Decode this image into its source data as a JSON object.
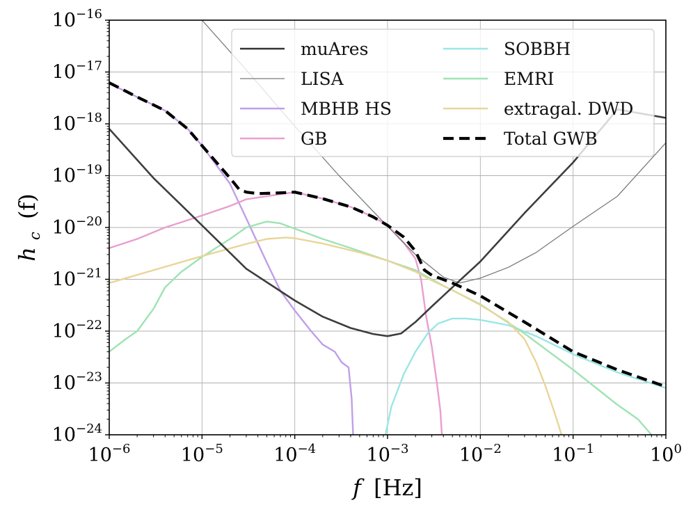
{
  "chart_data": {
    "type": "line",
    "xlabel": {
      "base": "f",
      "unit": "[Hz]"
    },
    "ylabel": {
      "base": "h",
      "sub": "c",
      "arg": "(f)"
    },
    "x_scale": "log",
    "y_scale": "log",
    "xlim": [
      1e-06,
      1
    ],
    "ylim": [
      1e-24,
      1e-16
    ],
    "grid": true,
    "legend_placement": "top-right, two columns",
    "x_ticks": [
      {
        "value": 1e-06,
        "base": "10",
        "exp": "−6"
      },
      {
        "value": 1e-05,
        "base": "10",
        "exp": "−5"
      },
      {
        "value": 0.0001,
        "base": "10",
        "exp": "−4"
      },
      {
        "value": 0.001,
        "base": "10",
        "exp": "−3"
      },
      {
        "value": 0.01,
        "base": "10",
        "exp": "−2"
      },
      {
        "value": 0.1,
        "base": "10",
        "exp": "−1"
      },
      {
        "value": 1,
        "base": "10",
        "exp": "0"
      }
    ],
    "y_ticks": [
      {
        "value": 1e-24,
        "base": "10",
        "exp": "−24"
      },
      {
        "value": 1e-23,
        "base": "10",
        "exp": "−23"
      },
      {
        "value": 1e-22,
        "base": "10",
        "exp": "−22"
      },
      {
        "value": 1e-21,
        "base": "10",
        "exp": "−21"
      },
      {
        "value": 1e-20,
        "base": "10",
        "exp": "−20"
      },
      {
        "value": 1e-19,
        "base": "10",
        "exp": "−19"
      },
      {
        "value": 1e-18,
        "base": "10",
        "exp": "−18"
      },
      {
        "value": 1e-17,
        "base": "10",
        "exp": "−17"
      },
      {
        "value": 1e-16,
        "base": "10",
        "exp": "−16"
      }
    ],
    "series": [
      {
        "name": "muAres",
        "color": "#333333",
        "style": "solid-thick",
        "x": [
          1e-06,
          3e-06,
          1e-05,
          3e-05,
          0.0001,
          0.0002,
          0.0004,
          0.0007,
          0.001,
          0.0014,
          0.002,
          0.003,
          0.006,
          0.01,
          0.03,
          0.1,
          0.3,
          1
        ],
        "y": [
          8e-19,
          9e-20,
          1.1e-20,
          1.6e-21,
          3.9e-22,
          1.9e-22,
          1.15e-22,
          8.8e-23,
          8e-23,
          9e-23,
          1.5e-22,
          3e-22,
          9.5e-22,
          2.2e-21,
          1.9e-20,
          1.8e-19,
          1.9e-18,
          1.3e-18
        ]
      },
      {
        "name": "LISA",
        "color": "#7a7a7a",
        "style": "solid-thin",
        "x": [
          1e-05,
          3e-05,
          0.0001,
          0.0003,
          0.001,
          0.002,
          0.004,
          0.006,
          0.01,
          0.02,
          0.04,
          0.1,
          0.3,
          1
        ],
        "y": [
          1e-16,
          1.1e-17,
          9e-19,
          1e-19,
          1.05e-20,
          3e-21,
          1.1e-21,
          8.5e-22,
          1.05e-21,
          1.7e-21,
          3.3e-21,
          1.05e-20,
          4e-20,
          4.3e-19
        ]
      },
      {
        "name": "MBHB HS",
        "color": "#c19ee8",
        "style": "solid",
        "x": [
          1e-06,
          2e-06,
          4e-06,
          7e-06,
          1e-05,
          2e-05,
          3e-05,
          5e-05,
          7e-05,
          0.0001,
          0.00015,
          0.0002,
          0.00027,
          0.00032,
          0.00038,
          0.00041,
          0.000425
        ],
        "y": [
          6e-18,
          3.3e-18,
          1.8e-18,
          8e-19,
          3.8e-19,
          7e-20,
          1.5e-20,
          2.1e-21,
          6e-22,
          2.5e-22,
          1e-22,
          5.5e-23,
          4e-23,
          2.5e-23,
          2e-23,
          5e-24,
          1e-24
        ]
      },
      {
        "name": "GB",
        "color": "#e89fcf",
        "style": "solid",
        "x": [
          1e-06,
          2e-06,
          4e-06,
          1e-05,
          2e-05,
          3e-05,
          5e-05,
          0.0001,
          0.0002,
          0.0004,
          0.0007,
          0.001,
          0.0015,
          0.002,
          0.0023,
          0.0026,
          0.003,
          0.0034,
          0.0037,
          0.00385
        ],
        "y": [
          4e-21,
          6e-21,
          1e-20,
          1.7e-20,
          2.6e-20,
          3.5e-20,
          4e-20,
          4.8e-20,
          3.6e-20,
          2.5e-20,
          1.6e-20,
          1.1e-20,
          5e-21,
          2.5e-21,
          1e-21,
          2e-22,
          5e-23,
          1e-23,
          3e-24,
          1e-24
        ]
      },
      {
        "name": "SOBBH",
        "color": "#9ae6e6",
        "style": "solid",
        "x": [
          0.00095,
          0.0011,
          0.0015,
          0.002,
          0.0027,
          0.0035,
          0.005,
          0.007,
          0.01,
          0.02,
          0.04,
          0.1,
          0.3,
          1
        ],
        "y": [
          1e-24,
          3.5e-24,
          1.5e-23,
          4e-23,
          9e-23,
          1.4e-22,
          1.75e-22,
          1.75e-22,
          1.65e-22,
          1.3e-22,
          8e-23,
          3.6e-23,
          1.6e-23,
          8e-24
        ]
      },
      {
        "name": "EMRI",
        "color": "#9ee3b3",
        "style": "solid",
        "x": [
          1e-06,
          1.5e-06,
          2e-06,
          3e-06,
          4e-06,
          6e-06,
          1e-05,
          2e-05,
          3e-05,
          5e-05,
          7e-05,
          0.0001,
          0.0002,
          0.0004,
          0.001,
          0.002,
          0.004,
          0.01,
          0.03,
          0.1,
          0.3,
          0.5,
          0.7
        ],
        "y": [
          4e-23,
          7e-23,
          1e-22,
          2.7e-22,
          7e-22,
          1.4e-21,
          2.7e-21,
          6e-21,
          1e-20,
          1.3e-20,
          1.2e-20,
          9.5e-21,
          6e-21,
          4e-21,
          2.3e-21,
          1.5e-21,
          7.5e-22,
          3.3e-22,
          9e-23,
          1.8e-23,
          3.8e-24,
          2e-24,
          1e-24
        ]
      },
      {
        "name": "extragal. DWD",
        "color": "#e8d598",
        "style": "solid",
        "x": [
          1e-06,
          3e-06,
          1e-05,
          3e-05,
          5e-05,
          8e-05,
          0.0001,
          0.0002,
          0.0005,
          0.001,
          0.002,
          0.003,
          0.005,
          0.01,
          0.02,
          0.03,
          0.04,
          0.05,
          0.06,
          0.07,
          0.075
        ],
        "y": [
          8.5e-22,
          1.5e-21,
          2.8e-21,
          4.8e-21,
          6e-21,
          6.4e-21,
          6.2e-21,
          4.9e-21,
          3.3e-21,
          2.3e-21,
          1.4e-21,
          9.5e-22,
          6.2e-22,
          3.2e-22,
          1.5e-22,
          7e-23,
          2.5e-23,
          9e-24,
          3.5e-24,
          1.5e-24,
          1e-24
        ]
      },
      {
        "name": "Total GWB",
        "color": "#000000",
        "style": "dashed-thick",
        "x": [
          1e-06,
          2e-06,
          4e-06,
          7e-06,
          1e-05,
          2e-05,
          2.5e-05,
          3e-05,
          4e-05,
          6e-05,
          0.0001,
          0.0002,
          0.0004,
          0.0007,
          0.001,
          0.0015,
          0.002,
          0.0025,
          0.003,
          0.005,
          0.01,
          0.03,
          0.1,
          0.3,
          1
        ],
        "y": [
          6.2e-18,
          3.3e-18,
          1.8e-18,
          8e-19,
          3.8e-19,
          9e-20,
          5.5e-20,
          4.8e-20,
          4.5e-20,
          4.6e-20,
          4.8e-20,
          3.6e-20,
          2.5e-20,
          1.6e-20,
          1.1e-20,
          6.5e-21,
          3.5e-21,
          1.5e-21,
          1.2e-21,
          8.5e-22,
          4.8e-22,
          1.5e-22,
          4e-23,
          1.8e-23,
          8.5e-24
        ]
      }
    ]
  }
}
